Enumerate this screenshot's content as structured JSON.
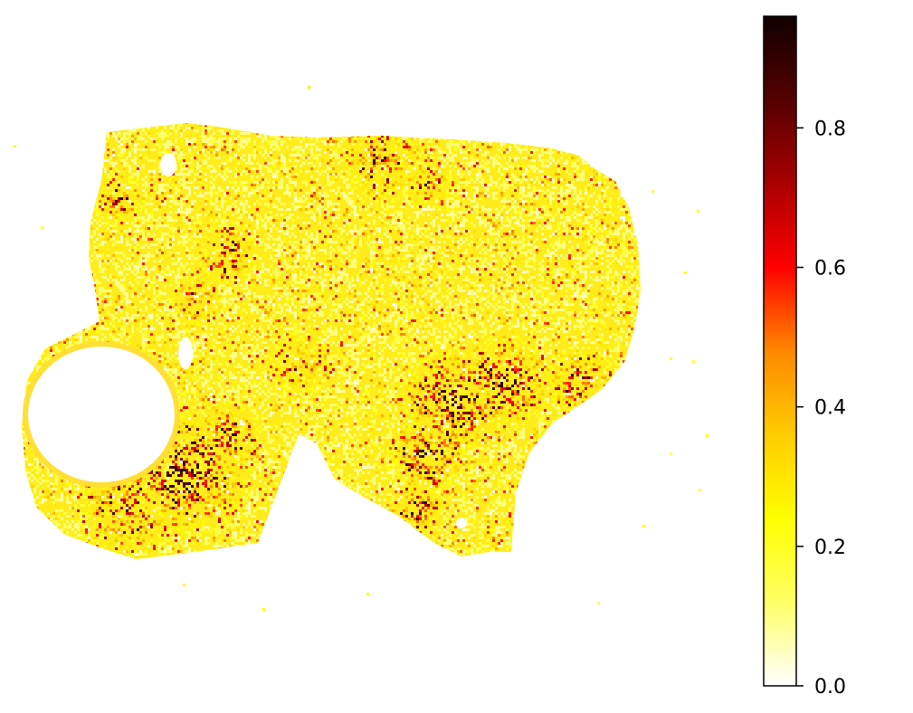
{
  "chart_data": {
    "type": "heatmap",
    "title": "",
    "xlabel": "",
    "ylabel": "",
    "axes_visible": false,
    "grid": false,
    "colormap": "hot_r",
    "colormap_stops": [
      "#ffffff",
      "#ffff66",
      "#ffff00",
      "#ffcc00",
      "#ff8800",
      "#ff0000",
      "#aa0000",
      "#550000",
      "#110000"
    ],
    "colorbar": {
      "placement": "right",
      "range": [
        0.0,
        0.96
      ],
      "ticks": [
        0.0,
        0.2,
        0.4,
        0.6,
        0.8
      ],
      "tick_labels": [
        "0.0",
        "0.2",
        "0.4",
        "0.6",
        "0.8"
      ]
    }
  }
}
